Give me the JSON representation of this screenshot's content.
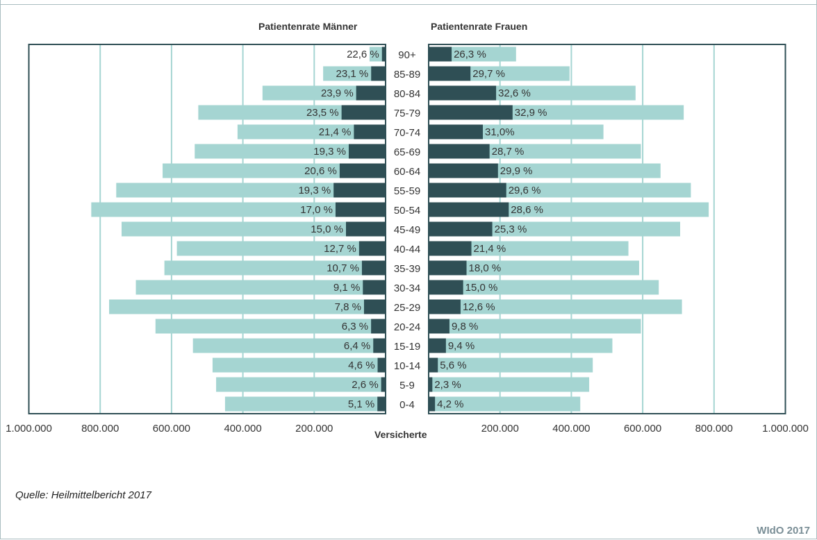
{
  "headings": {
    "men": "Patientenrate Männer",
    "women": "Patientenrate Frauen",
    "xlabel": "Versicherte"
  },
  "source": "Quelle: Heilmittelbericht 2017",
  "brand": "WIdO 2017",
  "colors": {
    "insured": "#a5d5d2",
    "patients": "#2f4f55",
    "grid": "#a5d5d2",
    "axis": "#2f4f55"
  },
  "chart_data": {
    "type": "bar",
    "orientation": "horizontal-population-pyramid",
    "categories": [
      "90+",
      "85-89",
      "80-84",
      "75-79",
      "70-74",
      "65-69",
      "60-64",
      "55-59",
      "50-54",
      "45-49",
      "40-44",
      "35-39",
      "30-34",
      "25-29",
      "20-24",
      "15-19",
      "10-14",
      "5-9",
      "0-4"
    ],
    "xlim": [
      0,
      1000000
    ],
    "xticks": [
      "1.000.000",
      "800.000",
      "600.000",
      "400.000",
      "200.000"
    ],
    "xticks_right": [
      "200.000",
      "400.000",
      "600.000",
      "800.000",
      "1.000.000"
    ],
    "men": {
      "insured": [
        45000,
        175000,
        345000,
        525000,
        415000,
        535000,
        625000,
        755000,
        825000,
        740000,
        585000,
        620000,
        700000,
        775000,
        645000,
        540000,
        485000,
        475000,
        450000
      ],
      "patient_rate_labels": [
        "22,6 %",
        "23,1 %",
        "23,9 %",
        "23,5 %",
        "21,4 %",
        "19,3 %",
        "20,6 %",
        "19,3 %",
        "17,0 %",
        "15,0 %",
        "12,7 %",
        "10,7 %",
        "9,1 %",
        "7,8 %",
        "6,3 %",
        "6,4 %",
        "4,6 %",
        "2,6 %",
        "5,1 %"
      ]
    },
    "women": {
      "insured": [
        245000,
        395000,
        580000,
        715000,
        490000,
        595000,
        650000,
        735000,
        785000,
        705000,
        560000,
        590000,
        645000,
        710000,
        595000,
        515000,
        460000,
        450000,
        425000
      ],
      "patient_rate_labels": [
        "26,3 %",
        "29,7 %",
        "32,6 %",
        "32,9 %",
        "31,0%",
        "28,7 %",
        "29,9 %",
        "29,6 %",
        "28,6 %",
        "25,3 %",
        "21,4 %",
        "18,0 %",
        "15,0 %",
        "12,6 %",
        "9,8 %",
        "9,4 %",
        "5,6 %",
        "2,3 %",
        "4,2 %"
      ]
    }
  }
}
